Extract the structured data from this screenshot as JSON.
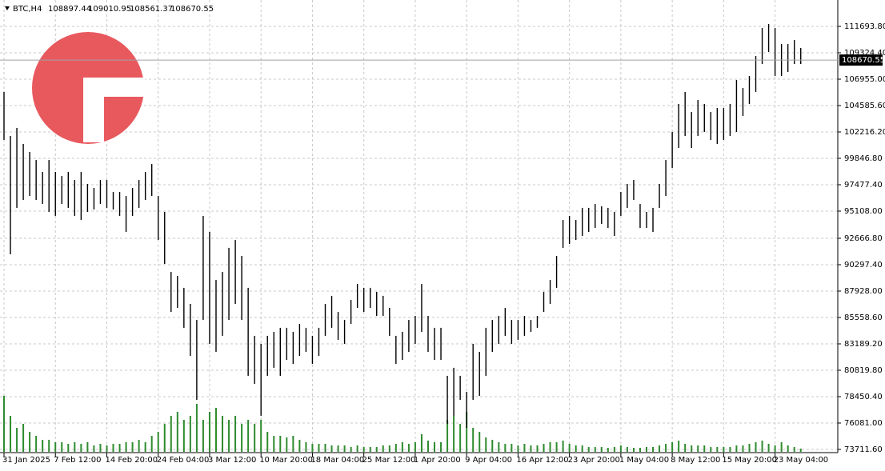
{
  "chart_data": {
    "type": "ohlc",
    "symbol": "BTC,H4",
    "ohlc": [
      108897.44,
      109010.95,
      108561.37,
      108670.55
    ],
    "categories": [
      "31 Jan 2025",
      null,
      null,
      null,
      null,
      null,
      null,
      null,
      "7 Feb 12:00",
      null,
      null,
      null,
      null,
      null,
      null,
      null,
      "14 Feb 20:00",
      null,
      null,
      null,
      null,
      null,
      null,
      null,
      "24 Feb 04:00",
      null,
      null,
      null,
      null,
      null,
      null,
      null,
      "3 Mar 12:00",
      null,
      null,
      null,
      null,
      null,
      null,
      null,
      "10 Mar 20:00",
      null,
      null,
      null,
      null,
      null,
      null,
      null,
      "18 Mar 04:00",
      null,
      null,
      null,
      null,
      null,
      null,
      null,
      "25 Mar 12:00",
      null,
      null,
      null,
      null,
      null,
      null,
      null,
      "1 Apr 20:00",
      null,
      null,
      null,
      null,
      null,
      null,
      null,
      "9 Apr 04:00",
      null,
      null,
      null,
      null,
      null,
      null,
      null,
      "16 Apr 12:00",
      null,
      null,
      null,
      null,
      null,
      null,
      null,
      "23 Apr 20:00",
      null,
      null,
      null,
      null,
      null,
      null,
      null,
      "1 May 04:00",
      null,
      null,
      null,
      null,
      null,
      null,
      null,
      "8 May 12:00",
      null,
      null,
      null,
      null,
      null,
      null,
      null,
      "15 May 20:00",
      null,
      null,
      null,
      null,
      null,
      null,
      null,
      "23 May 04:00",
      null,
      null,
      null,
      null
    ],
    "high": [
      105810,
      101860,
      102580,
      101140,
      100420,
      99700,
      98630,
      99700,
      98630,
      98270,
      98630,
      97910,
      98630,
      97550,
      97190,
      97910,
      97910,
      96830,
      96830,
      96470,
      97190,
      97910,
      98630,
      99340,
      96470,
      95040,
      89650,
      89290,
      88220,
      86780,
      85340,
      94680,
      93240,
      88930,
      89650,
      91810,
      92520,
      91090,
      88220,
      83910,
      83190,
      83910,
      84270,
      84630,
      84630,
      84270,
      84980,
      84630,
      83910,
      84630,
      86780,
      87500,
      86060,
      85340,
      87140,
      88570,
      88220,
      88220,
      87860,
      87500,
      86420,
      83910,
      84270,
      85340,
      85700,
      88570,
      85700,
      84630,
      84630,
      80320,
      81040,
      80320,
      78880,
      83190,
      82470,
      84630,
      85340,
      85700,
      86420,
      85340,
      85340,
      85700,
      85340,
      85700,
      87860,
      88930,
      91090,
      94320,
      94680,
      94320,
      95400,
      95400,
      95750,
      95540,
      95400,
      95040,
      96830,
      97550,
      97910,
      95750,
      95040,
      95400,
      97550,
      99700,
      102220,
      104730,
      105810,
      104010,
      105090,
      104730,
      104010,
      104370,
      104370,
      104730,
      106880,
      106170,
      107240,
      109040,
      111550,
      111910,
      111550,
      110110,
      110110,
      110470,
      109760
    ],
    "low": [
      101500,
      91230,
      95400,
      96110,
      96470,
      96110,
      95750,
      95040,
      94680,
      95750,
      95400,
      94680,
      94320,
      95040,
      95250,
      95750,
      95400,
      95250,
      94680,
      93240,
      94680,
      95400,
      96110,
      96470,
      92520,
      90370,
      86060,
      86420,
      84630,
      82110,
      78160,
      85340,
      83190,
      82470,
      83910,
      85340,
      86780,
      85340,
      80320,
      79600,
      76730,
      80320,
      81040,
      80320,
      81750,
      81390,
      82110,
      82470,
      81390,
      82110,
      83910,
      84630,
      83550,
      83190,
      84980,
      86420,
      86060,
      86420,
      85700,
      85700,
      83910,
      81390,
      81750,
      82470,
      83190,
      84270,
      82470,
      81750,
      81750,
      76010,
      76730,
      78160,
      75650,
      78160,
      78520,
      80320,
      82470,
      83190,
      83910,
      83190,
      83550,
      83910,
      84270,
      84630,
      86060,
      86780,
      88220,
      91810,
      92160,
      92520,
      92880,
      93240,
      93600,
      93960,
      93600,
      92880,
      94680,
      95400,
      96110,
      93600,
      93600,
      93240,
      95400,
      96470,
      98990,
      100780,
      101860,
      100780,
      101860,
      102220,
      101500,
      101140,
      101500,
      101860,
      102220,
      103650,
      104730,
      105810,
      108320,
      109400,
      107240,
      107240,
      107600,
      108320,
      108320
    ],
    "volume": [
      70,
      45,
      30,
      35,
      25,
      20,
      15,
      15,
      12,
      12,
      10,
      12,
      10,
      12,
      8,
      10,
      8,
      10,
      10,
      12,
      12,
      15,
      12,
      20,
      25,
      35,
      45,
      50,
      40,
      45,
      60,
      40,
      50,
      55,
      45,
      40,
      45,
      35,
      40,
      35,
      40,
      25,
      20,
      20,
      18,
      20,
      15,
      12,
      10,
      10,
      10,
      8,
      8,
      8,
      6,
      8,
      6,
      6,
      6,
      8,
      8,
      10,
      12,
      10,
      12,
      22,
      14,
      12,
      12,
      40,
      45,
      35,
      50,
      30,
      25,
      18,
      15,
      12,
      10,
      10,
      8,
      10,
      8,
      8,
      10,
      12,
      12,
      14,
      10,
      8,
      8,
      6,
      6,
      6,
      5,
      6,
      8,
      6,
      5,
      5,
      6,
      6,
      8,
      10,
      12,
      14,
      10,
      8,
      8,
      8,
      6,
      6,
      6,
      6,
      8,
      8,
      10,
      12,
      14,
      10,
      8,
      12,
      8,
      6,
      4
    ],
    "color": "#000000",
    "volume_color": "#2e8b2e",
    "last_price": 108670.55,
    "ylim": [
      73496,
      113920
    ],
    "yticks": [
      {
        "value": 73711.6,
        "label": "73711.60"
      },
      {
        "value": 76081,
        "label": "76081.00"
      },
      {
        "value": 78450.4,
        "label": "78450.40"
      },
      {
        "value": 80819.8,
        "label": "80819.80"
      },
      {
        "value": 83189.2,
        "label": "83189.20"
      },
      {
        "value": 85558.6,
        "label": "85558.60"
      },
      {
        "value": 87928,
        "label": "87928.00"
      },
      {
        "value": 90297.4,
        "label": "90297.40"
      },
      {
        "value": 92666.8,
        "label": "92666.80"
      },
      {
        "value": 95108,
        "label": "95108.00"
      },
      {
        "value": 97477.4,
        "label": "97477.40"
      },
      {
        "value": 99846.8,
        "label": "99846.80"
      },
      {
        "value": 102216.2,
        "label": "102216.20"
      },
      {
        "value": 104585.6,
        "label": "104585.60"
      },
      {
        "value": 106955,
        "label": "106955.00"
      },
      {
        "value": 109324.4,
        "label": "109324.40"
      },
      {
        "value": 111693.8,
        "label": "111693.80"
      }
    ],
    "grid": true
  }
}
